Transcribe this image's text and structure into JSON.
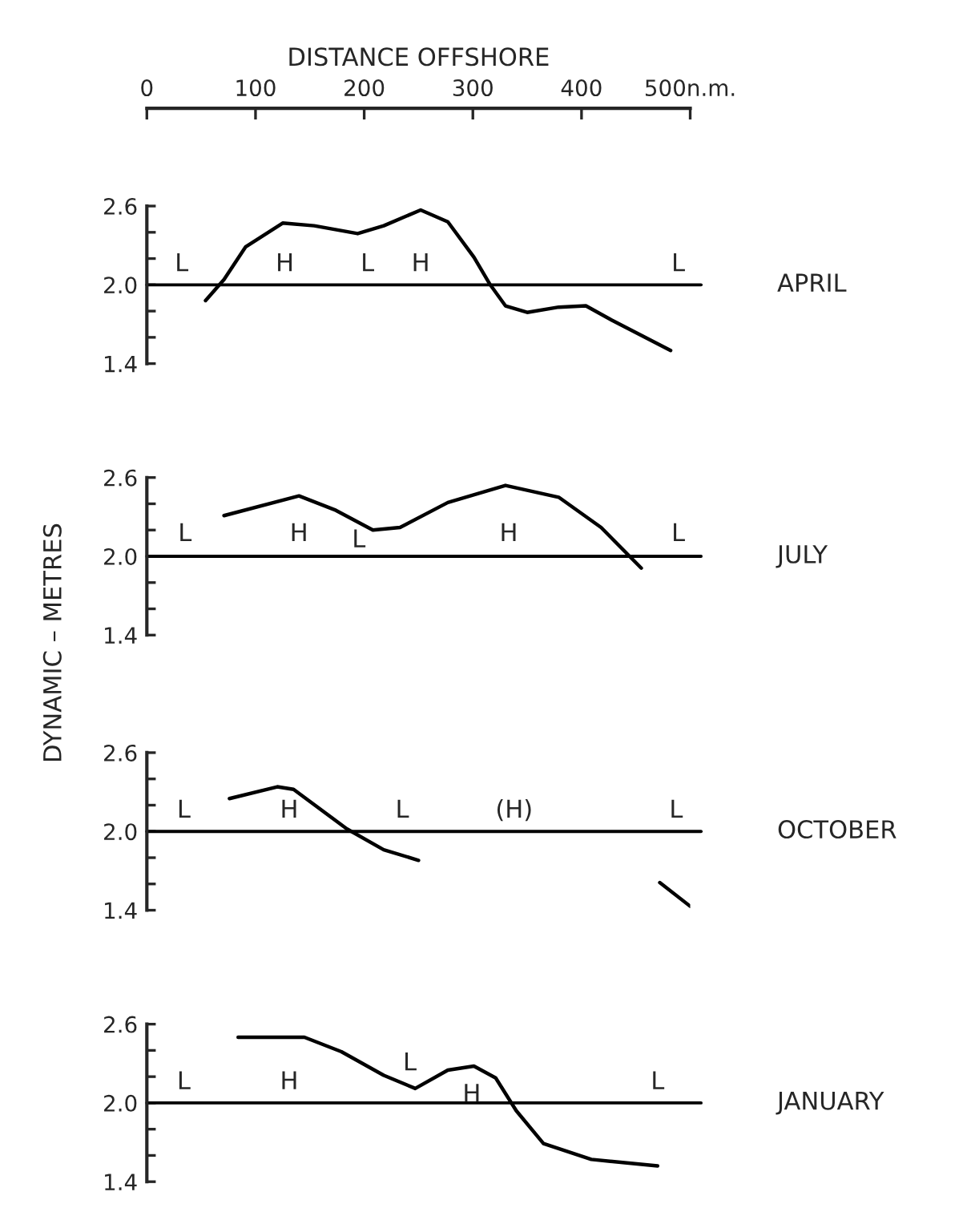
{
  "chart_data": [
    {
      "type": "line",
      "xlabel": "DISTANCE OFFSHORE",
      "xlim": [
        0,
        500
      ],
      "xticks": [
        0,
        100,
        200,
        300,
        400,
        {
          "value": 500,
          "label": "500n.m."
        }
      ],
      "ylim": [
        1.4,
        2.6
      ],
      "yticks": [
        {
          "value": 1.4,
          "label": "1.4"
        },
        {
          "value": 1.6,
          "label": null
        },
        {
          "value": 1.8,
          "label": null
        },
        {
          "value": 2.0,
          "label": "2.0"
        },
        {
          "value": 2.2,
          "label": null
        },
        {
          "value": 2.4,
          "label": null
        },
        {
          "value": 2.6,
          "label": "2.6"
        }
      ],
      "grid": false,
      "legend": false,
      "series": [
        {
          "color": "#000000",
          "x": [
            54,
            71,
            91,
            125,
            154,
            194,
            218,
            252,
            277,
            301,
            316,
            330,
            350,
            379,
            404,
            428,
            482
          ],
          "values": [
            1.88,
            2.04,
            2.29,
            2.47,
            2.45,
            2.39,
            2.45,
            2.57,
            2.48,
            2.21,
            2.0,
            1.84,
            1.79,
            1.83,
            1.84,
            1.73,
            1.5
          ]
        }
      ],
      "ref_lines": [
        {
          "axis": "y",
          "value": 2.0,
          "color": "#000000"
        }
      ],
      "annotations": [
        "L",
        "H",
        "L",
        "H",
        "L",
        "APRIL"
      ]
    },
    {
      "type": "line",
      "ylabel": "DYNAMIC – METRES",
      "xlim": [
        0,
        500
      ],
      "ylim": [
        1.4,
        2.6
      ],
      "yticks": [
        {
          "value": 1.4,
          "label": "1.4"
        },
        {
          "value": 1.6,
          "label": null
        },
        {
          "value": 1.8,
          "label": null
        },
        {
          "value": 2.0,
          "label": "2.0"
        },
        {
          "value": 2.2,
          "label": null
        },
        {
          "value": 2.4,
          "label": null
        },
        {
          "value": 2.6,
          "label": "2.6"
        }
      ],
      "tick_labels": "y",
      "grid": false,
      "legend": false,
      "series": [
        {
          "color": "#000000",
          "x": [
            71,
            140,
            174,
            208,
            233,
            277,
            330,
            379,
            418,
            455
          ],
          "values": [
            2.31,
            2.46,
            2.35,
            2.2,
            2.22,
            2.41,
            2.54,
            2.45,
            2.22,
            1.91
          ]
        }
      ],
      "ref_lines": [
        {
          "axis": "y",
          "value": 2.0,
          "color": "#000000"
        }
      ],
      "annotations": [
        "L",
        "H",
        "L",
        "H",
        "L",
        "JULY"
      ]
    },
    {
      "type": "line",
      "xlim": [
        0,
        500
      ],
      "ylim": [
        1.4,
        2.6
      ],
      "yticks": [
        {
          "value": 1.4,
          "label": "1.4"
        },
        {
          "value": 1.6,
          "label": null
        },
        {
          "value": 1.8,
          "label": null
        },
        {
          "value": 2.0,
          "label": "2.0"
        },
        {
          "value": 2.2,
          "label": null
        },
        {
          "value": 2.4,
          "label": null
        },
        {
          "value": 2.6,
          "label": "2.6"
        }
      ],
      "tick_labels": "y",
      "grid": false,
      "legend": false,
      "series": [
        {
          "color": "#000000",
          "x": [
            76,
            120,
            135,
            184,
            218,
            250,
            360,
            472,
            500
          ],
          "values": [
            2.25,
            2.34,
            2.32,
            2.02,
            1.86,
            1.78,
            null,
            1.61,
            1.43
          ]
        }
      ],
      "ref_lines": [
        {
          "axis": "y",
          "value": 2.0,
          "color": "#000000"
        }
      ],
      "annotations": [
        "L",
        "H",
        "L",
        "(H)",
        "L",
        "OCTOBER"
      ]
    },
    {
      "type": "line",
      "xlim": [
        0,
        500
      ],
      "ylim": [
        1.4,
        2.6
      ],
      "yticks": [
        {
          "value": 1.4,
          "label": "1.4"
        },
        {
          "value": 1.6,
          "label": null
        },
        {
          "value": 1.8,
          "label": null
        },
        {
          "value": 2.0,
          "label": "2.0"
        },
        {
          "value": 2.2,
          "label": null
        },
        {
          "value": 2.4,
          "label": null
        },
        {
          "value": 2.6,
          "label": "2.6"
        }
      ],
      "tick_labels": "y",
      "grid": false,
      "legend": false,
      "series": [
        {
          "color": "#000000",
          "x": [
            84,
            145,
            179,
            218,
            247,
            277,
            301,
            321,
            340,
            365,
            409,
            470
          ],
          "values": [
            2.5,
            2.5,
            2.39,
            2.21,
            2.11,
            2.25,
            2.28,
            2.19,
            1.94,
            1.69,
            1.57,
            1.52
          ]
        }
      ],
      "ref_lines": [
        {
          "axis": "y",
          "value": 2.0,
          "color": "#000000"
        }
      ],
      "annotations": [
        "L",
        "H",
        "L",
        "H",
        "L",
        "JANUARY"
      ]
    }
  ]
}
